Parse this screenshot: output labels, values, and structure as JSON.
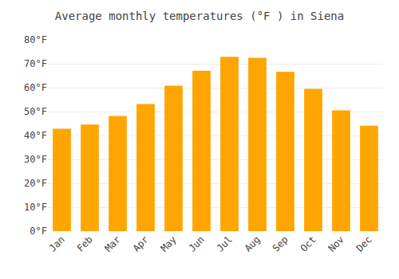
{
  "chart_data": {
    "type": "bar",
    "title": "Average monthly temperatures (°F ) in Siena",
    "categories": [
      "Jan",
      "Feb",
      "Mar",
      "Apr",
      "May",
      "Jun",
      "Jul",
      "Aug",
      "Sep",
      "Oct",
      "Nov",
      "Dec"
    ],
    "values": [
      42.8,
      44.6,
      48.2,
      53.2,
      60.8,
      67.1,
      72.9,
      72.5,
      66.7,
      59.5,
      50.5,
      44.1
    ],
    "color": "#FFA500",
    "ylim": [
      0,
      80
    ],
    "yticks": [
      {
        "value": 0,
        "label": "0°F"
      },
      {
        "value": 10,
        "label": "10°F"
      },
      {
        "value": 20,
        "label": "20°F"
      },
      {
        "value": 30,
        "label": "30°F"
      },
      {
        "value": 40,
        "label": "40°F"
      },
      {
        "value": 50,
        "label": "50°F"
      },
      {
        "value": 60,
        "label": "60°F"
      },
      {
        "value": 70,
        "label": "70°F"
      },
      {
        "value": 80,
        "label": "80°F"
      }
    ],
    "grid": true
  }
}
